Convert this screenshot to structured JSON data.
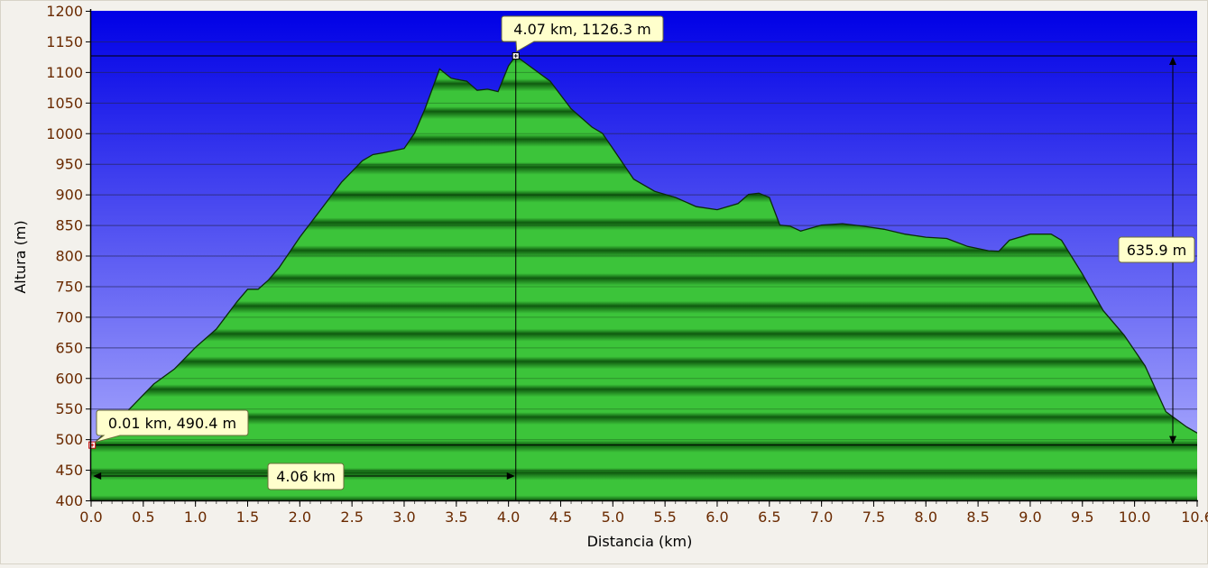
{
  "chart_data": {
    "type": "area",
    "title": "",
    "xlabel": "Distancia  (km)",
    "ylabel": "Altura (m)",
    "xlim": [
      0,
      10.6
    ],
    "ylim": [
      400,
      1200
    ],
    "x_ticks": [
      "0.0",
      "0.5",
      "1.0",
      "1.5",
      "2.0",
      "2.5",
      "3.0",
      "3.5",
      "4.0",
      "4.5",
      "5.0",
      "5.5",
      "6.0",
      "6.5",
      "7.0",
      "7.5",
      "8.0",
      "8.5",
      "9.0",
      "9.5",
      "10.0",
      "10.6"
    ],
    "y_ticks": [
      "1200",
      "1150",
      "1100",
      "1050",
      "1000",
      "950",
      "900",
      "850",
      "800",
      "750",
      "700",
      "650",
      "600",
      "550",
      "500",
      "450",
      "400"
    ],
    "grid": true,
    "series": [
      {
        "x": [
          0.0,
          0.01,
          0.2,
          0.4,
          0.6,
          0.8,
          1.0,
          1.2,
          1.4,
          1.5,
          1.6,
          1.7,
          1.8,
          2.0,
          2.2,
          2.4,
          2.6,
          2.7,
          2.8,
          3.0,
          3.1,
          3.2,
          3.34,
          3.45,
          3.5,
          3.6,
          3.7,
          3.8,
          3.9,
          4.0,
          4.07,
          4.2,
          4.4,
          4.6,
          4.8,
          4.9,
          5.0,
          5.2,
          5.4,
          5.6,
          5.8,
          6.0,
          6.2,
          6.3,
          6.4,
          6.5,
          6.6,
          6.7,
          6.8,
          7.0,
          7.2,
          7.4,
          7.6,
          7.8,
          8.0,
          8.2,
          8.4,
          8.6,
          8.7,
          8.8,
          9.0,
          9.2,
          9.3,
          9.5,
          9.7,
          9.9,
          10.1,
          10.3,
          10.5,
          10.6
        ],
        "y": [
          490,
          490.4,
          520,
          555,
          590,
          615,
          650,
          680,
          725,
          745,
          745,
          760,
          780,
          830,
          875,
          920,
          955,
          965,
          968,
          975,
          1000,
          1040,
          1105,
          1090,
          1088,
          1085,
          1070,
          1072,
          1068,
          1110,
          1126.3,
          1110,
          1085,
          1040,
          1010,
          1000,
          975,
          925,
          905,
          895,
          880,
          875,
          885,
          900,
          902,
          895,
          850,
          848,
          840,
          850,
          852,
          848,
          843,
          835,
          830,
          828,
          815,
          808,
          807,
          825,
          835,
          835,
          825,
          770,
          710,
          670,
          620,
          545,
          520,
          510
        ]
      }
    ],
    "annotations": [
      {
        "text": "4.07 km, 1126.3 m",
        "x": 4.07,
        "y": 1126.3
      },
      {
        "text": "0.01 km, 490.4 m",
        "x": 0.01,
        "y": 490.4
      },
      {
        "text": "635.9 m",
        "kind": "vertical-range"
      },
      {
        "text": "4.06 km",
        "kind": "horizontal-range"
      }
    ],
    "colors": {
      "sky_top": "#0000e6",
      "sky_bottom": "#b8b8ff",
      "fill_light": "#3cc43a",
      "fill_dark": "#0f5a0f",
      "callout_bg": "#ffffcc",
      "axis": "#000000",
      "label_text": "#6a2a00"
    }
  }
}
